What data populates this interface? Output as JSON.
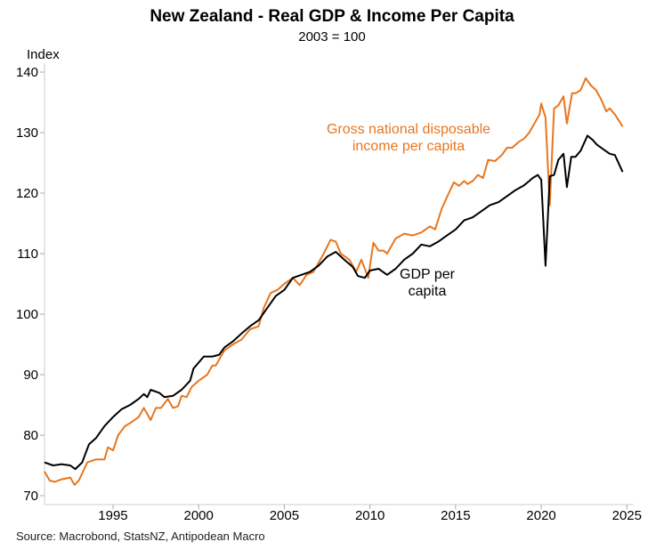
{
  "chart_data": {
    "type": "line",
    "title": "New Zealand - Real GDP & Income Per Capita",
    "subtitle": "2003 = 100",
    "ylabel": "Index",
    "xlabel": "",
    "xlim": [
      1991,
      2025.4
    ],
    "ylim": [
      68.5,
      141
    ],
    "x_ticks": [
      1995,
      2000,
      2005,
      2010,
      2015,
      2020,
      2025
    ],
    "y_ticks": [
      70,
      80,
      90,
      100,
      110,
      120,
      130,
      140
    ],
    "grid": false,
    "source": "Source: Macrobond, StatsNZ, Antipodean Macro",
    "series": [
      {
        "name": "GDP per capita",
        "label_lines": [
          "GDP per",
          "capita"
        ],
        "color": "#000000",
        "points": [
          [
            1991.0,
            75.5
          ],
          [
            1991.5,
            75.0
          ],
          [
            1992.0,
            75.2
          ],
          [
            1992.5,
            75.0
          ],
          [
            1992.8,
            74.4
          ],
          [
            1993.2,
            75.5
          ],
          [
            1993.6,
            78.5
          ],
          [
            1994.0,
            79.5
          ],
          [
            1994.5,
            81.5
          ],
          [
            1995.0,
            83.0
          ],
          [
            1995.5,
            84.3
          ],
          [
            1996.0,
            85.0
          ],
          [
            1996.5,
            86.0
          ],
          [
            1996.8,
            86.8
          ],
          [
            1997.0,
            86.3
          ],
          [
            1997.2,
            87.5
          ],
          [
            1997.7,
            87.0
          ],
          [
            1998.0,
            86.3
          ],
          [
            1998.5,
            86.5
          ],
          [
            1999.0,
            87.5
          ],
          [
            1999.5,
            89.0
          ],
          [
            1999.7,
            91.0
          ],
          [
            2000.0,
            92.0
          ],
          [
            2000.3,
            93.0
          ],
          [
            2000.8,
            93.0
          ],
          [
            2001.2,
            93.3
          ],
          [
            2001.5,
            94.5
          ],
          [
            2002.0,
            95.5
          ],
          [
            2002.5,
            96.8
          ],
          [
            2003.0,
            98.0
          ],
          [
            2003.5,
            99.0
          ],
          [
            2004.0,
            101.0
          ],
          [
            2004.5,
            103.0
          ],
          [
            2005.0,
            104.0
          ],
          [
            2005.5,
            106.0
          ],
          [
            2006.0,
            106.5
          ],
          [
            2006.5,
            107.0
          ],
          [
            2007.0,
            108.0
          ],
          [
            2007.5,
            109.5
          ],
          [
            2008.0,
            110.3
          ],
          [
            2008.5,
            109.0
          ],
          [
            2009.0,
            107.8
          ],
          [
            2009.3,
            106.3
          ],
          [
            2009.7,
            106.0
          ],
          [
            2010.0,
            107.2
          ],
          [
            2010.5,
            107.5
          ],
          [
            2011.0,
            106.5
          ],
          [
            2011.5,
            107.5
          ],
          [
            2012.0,
            109.0
          ],
          [
            2012.5,
            110.0
          ],
          [
            2013.0,
            111.5
          ],
          [
            2013.5,
            111.2
          ],
          [
            2014.0,
            112.0
          ],
          [
            2014.5,
            113.0
          ],
          [
            2015.0,
            114.0
          ],
          [
            2015.5,
            115.5
          ],
          [
            2016.0,
            116.0
          ],
          [
            2016.5,
            117.0
          ],
          [
            2017.0,
            118.0
          ],
          [
            2017.5,
            118.5
          ],
          [
            2018.0,
            119.5
          ],
          [
            2018.5,
            120.5
          ],
          [
            2019.0,
            121.3
          ],
          [
            2019.3,
            122.0
          ],
          [
            2019.5,
            122.5
          ],
          [
            2019.8,
            123.0
          ],
          [
            2020.0,
            122.2
          ],
          [
            2020.25,
            108.0
          ],
          [
            2020.5,
            122.8
          ],
          [
            2020.75,
            123.0
          ],
          [
            2021.0,
            125.5
          ],
          [
            2021.3,
            126.5
          ],
          [
            2021.5,
            121.0
          ],
          [
            2021.75,
            126.0
          ],
          [
            2022.0,
            126.0
          ],
          [
            2022.3,
            127.0
          ],
          [
            2022.7,
            129.5
          ],
          [
            2023.0,
            128.8
          ],
          [
            2023.25,
            128.0
          ],
          [
            2023.75,
            127.0
          ],
          [
            2024.0,
            126.5
          ],
          [
            2024.3,
            126.3
          ],
          [
            2024.75,
            123.5
          ]
        ]
      },
      {
        "name": "Gross national disposable income per capita",
        "label_lines": [
          "Gross national disposable",
          "income per capita"
        ],
        "color": "#E8761E",
        "points": [
          [
            1991.0,
            74.0
          ],
          [
            1991.3,
            72.5
          ],
          [
            1991.6,
            72.3
          ],
          [
            1992.0,
            72.7
          ],
          [
            1992.5,
            73.0
          ],
          [
            1992.75,
            71.8
          ],
          [
            1993.0,
            72.5
          ],
          [
            1993.5,
            75.5
          ],
          [
            1994.0,
            76.0
          ],
          [
            1994.5,
            76.0
          ],
          [
            1994.7,
            78.0
          ],
          [
            1995.0,
            77.5
          ],
          [
            1995.3,
            80.0
          ],
          [
            1995.7,
            81.5
          ],
          [
            1996.0,
            82.0
          ],
          [
            1996.5,
            83.0
          ],
          [
            1996.8,
            84.5
          ],
          [
            1997.2,
            82.5
          ],
          [
            1997.5,
            84.5
          ],
          [
            1997.8,
            84.5
          ],
          [
            1998.2,
            86.0
          ],
          [
            1998.5,
            84.5
          ],
          [
            1998.8,
            84.8
          ],
          [
            1999.0,
            86.5
          ],
          [
            1999.3,
            86.3
          ],
          [
            1999.6,
            88.0
          ],
          [
            2000.0,
            89.0
          ],
          [
            2000.5,
            90.0
          ],
          [
            2000.8,
            91.5
          ],
          [
            2001.0,
            91.5
          ],
          [
            2001.5,
            94.0
          ],
          [
            2002.0,
            95.0
          ],
          [
            2002.5,
            95.8
          ],
          [
            2003.0,
            97.5
          ],
          [
            2003.5,
            98.0
          ],
          [
            2003.8,
            101.0
          ],
          [
            2004.2,
            103.5
          ],
          [
            2004.6,
            104.0
          ],
          [
            2005.0,
            105.0
          ],
          [
            2005.5,
            106.0
          ],
          [
            2005.9,
            104.8
          ],
          [
            2006.3,
            106.5
          ],
          [
            2006.7,
            107.0
          ],
          [
            2007.0,
            108.5
          ],
          [
            2007.3,
            110.0
          ],
          [
            2007.7,
            112.3
          ],
          [
            2008.0,
            112.0
          ],
          [
            2008.3,
            110.0
          ],
          [
            2008.8,
            109.0
          ],
          [
            2009.2,
            107.0
          ],
          [
            2009.5,
            109.0
          ],
          [
            2009.9,
            106.0
          ],
          [
            2010.2,
            111.8
          ],
          [
            2010.5,
            110.5
          ],
          [
            2010.8,
            110.5
          ],
          [
            2011.0,
            110.0
          ],
          [
            2011.5,
            112.5
          ],
          [
            2012.0,
            113.3
          ],
          [
            2012.5,
            113.0
          ],
          [
            2013.0,
            113.5
          ],
          [
            2013.5,
            114.5
          ],
          [
            2013.8,
            114.0
          ],
          [
            2014.2,
            117.5
          ],
          [
            2014.6,
            120.0
          ],
          [
            2014.9,
            121.8
          ],
          [
            2015.2,
            121.2
          ],
          [
            2015.5,
            122.0
          ],
          [
            2015.7,
            121.5
          ],
          [
            2016.0,
            122.0
          ],
          [
            2016.3,
            123.0
          ],
          [
            2016.6,
            122.5
          ],
          [
            2016.9,
            125.5
          ],
          [
            2017.3,
            125.3
          ],
          [
            2017.7,
            126.3
          ],
          [
            2018.0,
            127.5
          ],
          [
            2018.3,
            127.5
          ],
          [
            2018.7,
            128.5
          ],
          [
            2019.0,
            129.0
          ],
          [
            2019.3,
            130.0
          ],
          [
            2019.6,
            131.5
          ],
          [
            2019.9,
            133.0
          ],
          [
            2020.0,
            134.8
          ],
          [
            2020.25,
            132.5
          ],
          [
            2020.5,
            118.0
          ],
          [
            2020.75,
            134.0
          ],
          [
            2021.0,
            134.5
          ],
          [
            2021.3,
            136.0
          ],
          [
            2021.5,
            131.5
          ],
          [
            2021.8,
            136.5
          ],
          [
            2022.0,
            136.5
          ],
          [
            2022.3,
            137.0
          ],
          [
            2022.6,
            139.0
          ],
          [
            2022.9,
            137.8
          ],
          [
            2023.2,
            137.0
          ],
          [
            2023.5,
            135.5
          ],
          [
            2023.8,
            133.5
          ],
          [
            2024.0,
            134.0
          ],
          [
            2024.3,
            133.0
          ],
          [
            2024.75,
            131.0
          ]
        ]
      }
    ]
  }
}
